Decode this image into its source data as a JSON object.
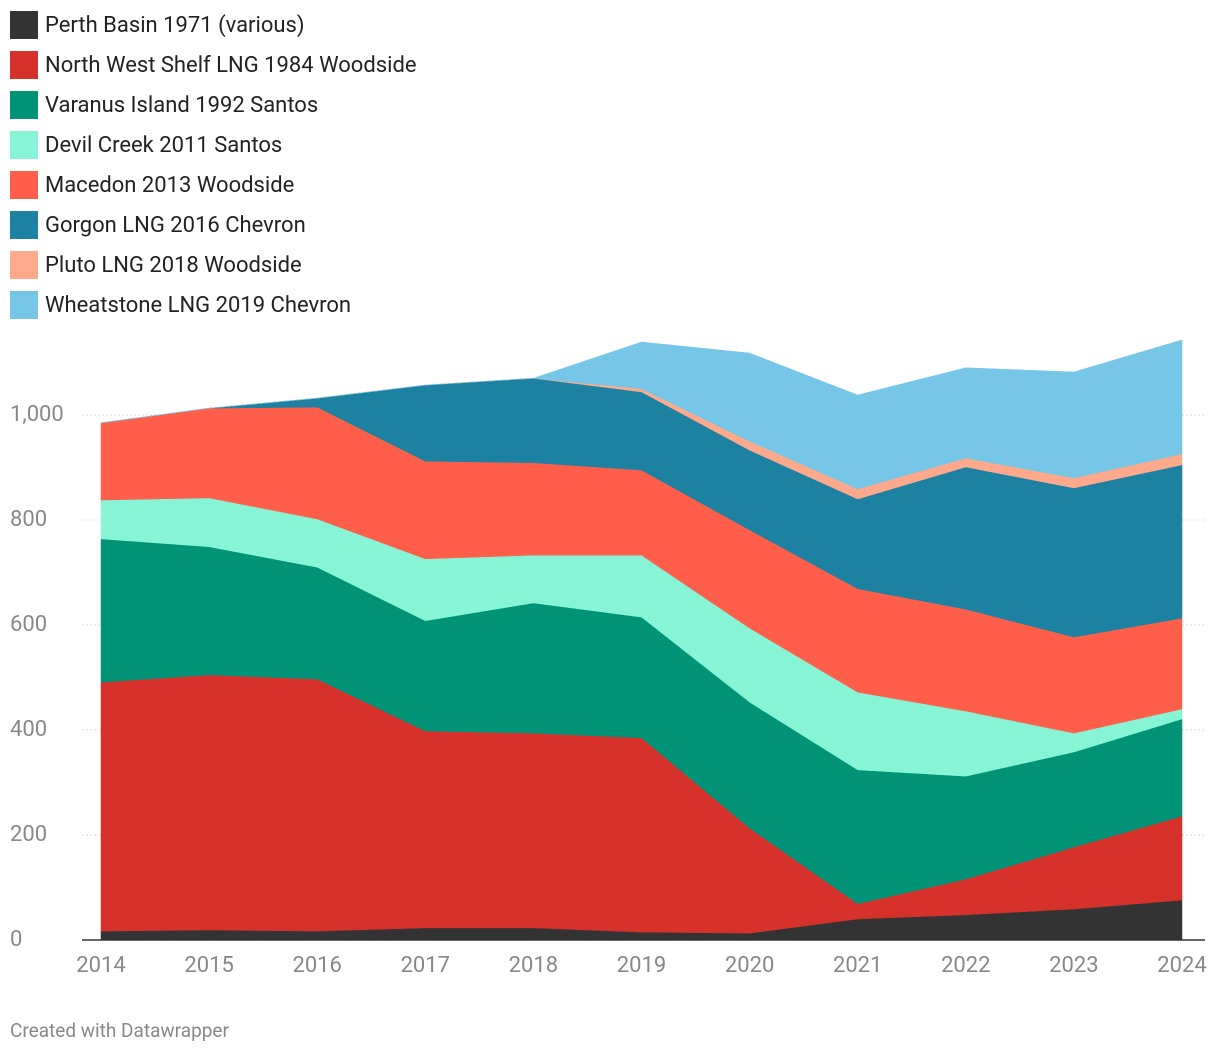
{
  "chart_data": {
    "type": "stacked-area",
    "x": [
      2014,
      2015,
      2016,
      2017,
      2018,
      2019,
      2020,
      2021,
      2022,
      2023,
      2024
    ],
    "xlim": [
      2014,
      2024
    ],
    "xticks": [
      2014,
      2015,
      2016,
      2017,
      2018,
      2019,
      2020,
      2021,
      2022,
      2023,
      2024
    ],
    "ylim": [
      0,
      1200
    ],
    "yticks": [
      0,
      200,
      400,
      600,
      800,
      {
        "value": 1000,
        "label": "1,000"
      }
    ],
    "grid": true,
    "legend": "top-left",
    "series": [
      {
        "name": "Perth Basin 1971 (various)",
        "color": "#333333",
        "values": [
          17,
          19,
          17,
          23,
          23,
          15,
          13,
          40,
          48,
          59,
          76
        ]
      },
      {
        "name": "North West Shelf LNG 1984 Woodside",
        "color": "#d7312b",
        "values": [
          474,
          486,
          480,
          375,
          371,
          370,
          200,
          29,
          68,
          118,
          160
        ]
      },
      {
        "name": "Varanus Island 1992 Santos",
        "color": "#009377",
        "values": [
          273,
          244,
          213,
          210,
          248,
          230,
          240,
          255,
          196,
          181,
          185
        ]
      },
      {
        "name": "Devil Creek 2011 Santos",
        "color": "#86f4d5",
        "values": [
          74,
          93,
          92,
          118,
          91,
          118,
          141,
          148,
          124,
          36,
          19
        ]
      },
      {
        "name": "Macedon 2013 Woodside",
        "color": "#ff5e4b",
        "values": [
          147,
          171,
          213,
          186,
          176,
          162,
          187,
          197,
          194,
          183,
          173
        ]
      },
      {
        "name": "Gorgon LNG 2016 Chevron",
        "color": "#1d81a2",
        "values": [
          0,
          0,
          17,
          145,
          161,
          149,
          152,
          171,
          271,
          284,
          292
        ]
      },
      {
        "name": "Pluto LNG 2018 Woodside",
        "color": "#ffa98c",
        "values": [
          0,
          0,
          0,
          0,
          0,
          6,
          17,
          19,
          17,
          19,
          21
        ]
      },
      {
        "name": "Wheatstone LNG 2019 Chevron",
        "color": "#76c6e7",
        "values": [
          0,
          0,
          0,
          0,
          0,
          89,
          168,
          179,
          172,
          202,
          217
        ]
      }
    ],
    "credit": "Created with Datawrapper"
  }
}
